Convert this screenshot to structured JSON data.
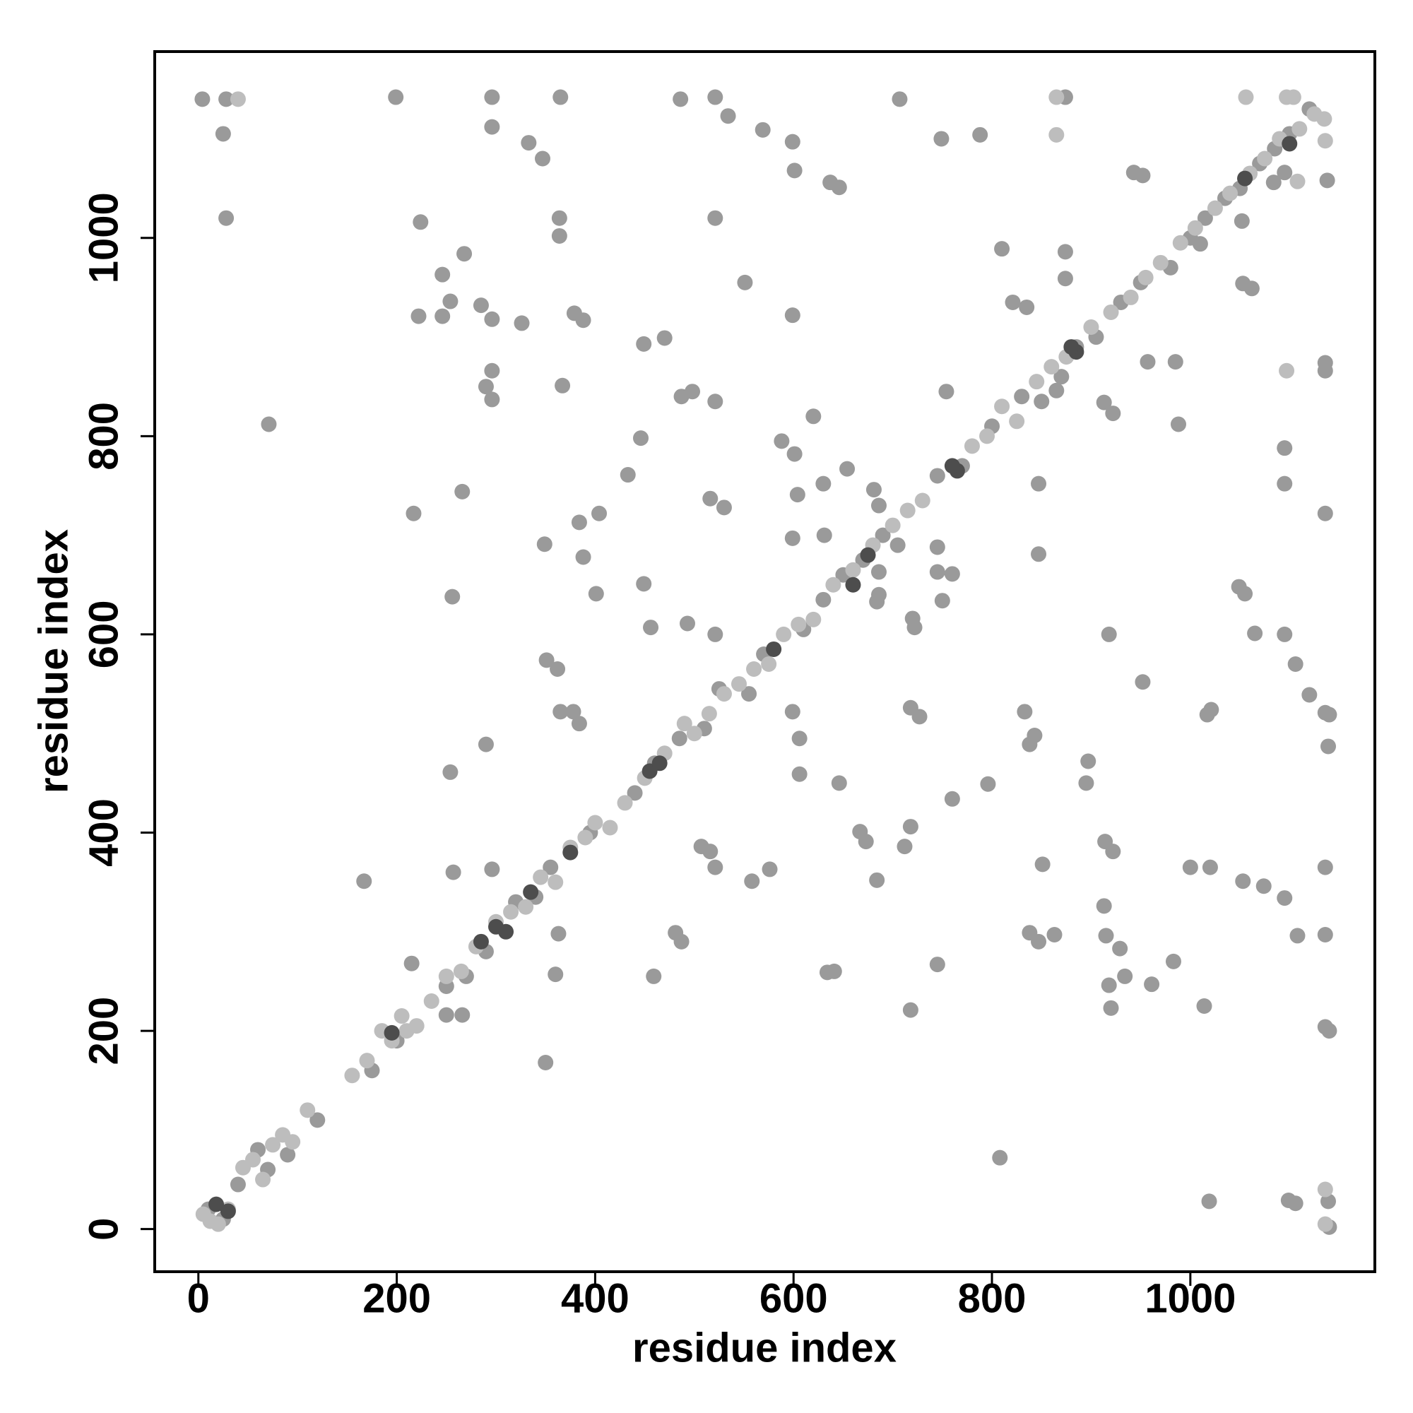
{
  "chart_data": {
    "type": "scatter",
    "xlabel": "residue index",
    "ylabel": "residue index",
    "xlim": [
      -44,
      1186
    ],
    "ylim": [
      -43,
      1188
    ],
    "xticks": [
      0,
      200,
      400,
      600,
      800,
      1000
    ],
    "yticks": [
      0,
      200,
      400,
      600,
      800,
      1000
    ],
    "grid": false,
    "series": [
      {
        "color": "#9a9a9a",
        "x": [
          10,
          25,
          40,
          60,
          70,
          90,
          120,
          175,
          200,
          250,
          270,
          290,
          320,
          340,
          355,
          395,
          440,
          460,
          485,
          510,
          525,
          555,
          570,
          610,
          630,
          650,
          670,
          690,
          705,
          745,
          770,
          800,
          830,
          850,
          870,
          885,
          905,
          930,
          950,
          980,
          1000,
          1015,
          1035,
          1050,
          1070,
          1085,
          1100,
          1120,
          4,
          28,
          25,
          28,
          71,
          199,
          224,
          222,
          246,
          254,
          246,
          268,
          285,
          296,
          296,
          296,
          296,
          296,
          290,
          326,
          333,
          347,
          365,
          364,
          364,
          379,
          388,
          367,
          266,
          217,
          349,
          384,
          388,
          401,
          404,
          256,
          351,
          362,
          365,
          378,
          384,
          290,
          254,
          363,
          360,
          257,
          350,
          167,
          215,
          266,
          250,
          296,
          486,
          521,
          534,
          569,
          599,
          601,
          637,
          646,
          521,
          551,
          599,
          449,
          470,
          487,
          498,
          521,
          446,
          433,
          620,
          588,
          601,
          630,
          654,
          681,
          604,
          516,
          530,
          599,
          631,
          686,
          449,
          456,
          493,
          521,
          599,
          606,
          606,
          646,
          686,
          684,
          686,
          720,
          722,
          745,
          745,
          760,
          750,
          754,
          707,
          749,
          788,
          874,
          874,
          874,
          810,
          821,
          835,
          718,
          727,
          760,
          796,
          718,
          712,
          673,
          684,
          667,
          641,
          718,
          576,
          558,
          507,
          521,
          516,
          459,
          481,
          487,
          634,
          745,
          808,
          833,
          838,
          843,
          851,
          838,
          847,
          863,
          847,
          847,
          913,
          922,
          865,
          957,
          985,
          988,
          943,
          952,
          1053,
          1062,
          1095,
          1095,
          1136,
          1136,
          1136,
          1049,
          1055,
          1065,
          1095,
          1106,
          1120,
          1136,
          1140,
          1139,
          1021,
          1017,
          918,
          952,
          897,
          895,
          914,
          922,
          1000,
          1020,
          1136,
          1053,
          1074,
          1095,
          1108,
          1136,
          913,
          915,
          929,
          934,
          961,
          918,
          920,
          983,
          1014,
          1136,
          1140,
          1019,
          1099,
          1106,
          1139,
          1140,
          1010,
          1052,
          1095,
          1084,
          1138
        ],
        "values": [
          20,
          10,
          45,
          80,
          60,
          75,
          110,
          160,
          190,
          245,
          255,
          280,
          330,
          335,
          365,
          400,
          440,
          470,
          495,
          505,
          545,
          540,
          580,
          605,
          635,
          660,
          675,
          700,
          690,
          760,
          770,
          810,
          840,
          835,
          860,
          890,
          900,
          935,
          955,
          970,
          1000,
          1020,
          1040,
          1050,
          1075,
          1090,
          1105,
          1130,
          1140,
          1140,
          1105,
          1020,
          812,
          1142,
          1016,
          921,
          963,
          936,
          921,
          984,
          932,
          918,
          1142,
          1112,
          866,
          837,
          850,
          914,
          1096,
          1080,
          1142,
          1020,
          1002,
          924,
          917,
          851,
          744,
          722,
          691,
          713,
          678,
          641,
          722,
          638,
          574,
          565,
          522,
          522,
          510,
          489,
          461,
          298,
          257,
          360,
          168,
          351,
          268,
          216,
          216,
          363,
          1140,
          1142,
          1123,
          1109,
          1097,
          1068,
          1056,
          1051,
          1020,
          955,
          922,
          893,
          899,
          840,
          845,
          835,
          798,
          761,
          820,
          795,
          782,
          752,
          767,
          746,
          741,
          737,
          728,
          697,
          700,
          730,
          651,
          607,
          611,
          600,
          522,
          495,
          459,
          450,
          640,
          633,
          663,
          616,
          607,
          688,
          663,
          661,
          634,
          845,
          1140,
          1100,
          1104,
          1142,
          986,
          959,
          989,
          935,
          930,
          526,
          517,
          434,
          449,
          406,
          386,
          391,
          352,
          401,
          260,
          221,
          363,
          351,
          386,
          365,
          381,
          255,
          299,
          290,
          259,
          267,
          72,
          522,
          489,
          498,
          368,
          299,
          290,
          297,
          752,
          681,
          834,
          823,
          846,
          875,
          875,
          812,
          1066,
          1063,
          954,
          949,
          788,
          752,
          874,
          866,
          722,
          648,
          641,
          601,
          600,
          570,
          539,
          521,
          519,
          487,
          524,
          519,
          600,
          552,
          472,
          450,
          391,
          381,
          365,
          365,
          365,
          351,
          346,
          334,
          296,
          297,
          326,
          296,
          283,
          255,
          247,
          246,
          223,
          270,
          225,
          204,
          200,
          28,
          29,
          26,
          28,
          2,
          994,
          1017,
          1066,
          1056,
          1058
        ]
      },
      {
        "color": "#bdbdbd",
        "x": [
          5,
          12,
          20,
          30,
          45,
          55,
          65,
          75,
          85,
          95,
          110,
          155,
          170,
          185,
          195,
          205,
          210,
          220,
          235,
          250,
          265,
          280,
          300,
          315,
          330,
          345,
          360,
          375,
          390,
          400,
          415,
          430,
          450,
          470,
          490,
          500,
          515,
          530,
          545,
          560,
          575,
          590,
          605,
          620,
          640,
          660,
          680,
          700,
          715,
          730,
          780,
          795,
          810,
          825,
          845,
          860,
          875,
          900,
          920,
          940,
          955,
          970,
          990,
          1005,
          1025,
          1040,
          1060,
          1075,
          1090,
          1110,
          1125,
          1135,
          40,
          865,
          865,
          1097,
          1136,
          1136,
          1097,
          1056,
          1104,
          1136,
          1108
        ],
        "values": [
          15,
          8,
          5,
          20,
          62,
          70,
          50,
          85,
          95,
          88,
          120,
          155,
          170,
          200,
          190,
          215,
          200,
          205,
          230,
          255,
          260,
          285,
          310,
          320,
          325,
          355,
          350,
          385,
          395,
          410,
          405,
          430,
          455,
          480,
          510,
          500,
          520,
          540,
          550,
          565,
          570,
          600,
          610,
          615,
          650,
          665,
          690,
          710,
          725,
          735,
          790,
          800,
          830,
          815,
          855,
          870,
          880,
          910,
          925,
          940,
          960,
          975,
          995,
          1010,
          1030,
          1045,
          1065,
          1080,
          1100,
          1110,
          1125,
          1120,
          1140,
          1142,
          1104,
          866,
          40,
          5,
          1142,
          1142,
          1142,
          1098,
          1057
        ]
      },
      {
        "color": "#4d4d4d",
        "x": [
          18,
          30,
          195,
          285,
          300,
          310,
          335,
          375,
          455,
          465,
          580,
          660,
          675,
          765,
          760,
          885,
          880,
          1055,
          1100
        ],
        "values": [
          25,
          18,
          198,
          290,
          305,
          300,
          340,
          380,
          462,
          470,
          585,
          650,
          680,
          765,
          770,
          885,
          890,
          1060,
          1095
        ]
      }
    ]
  }
}
